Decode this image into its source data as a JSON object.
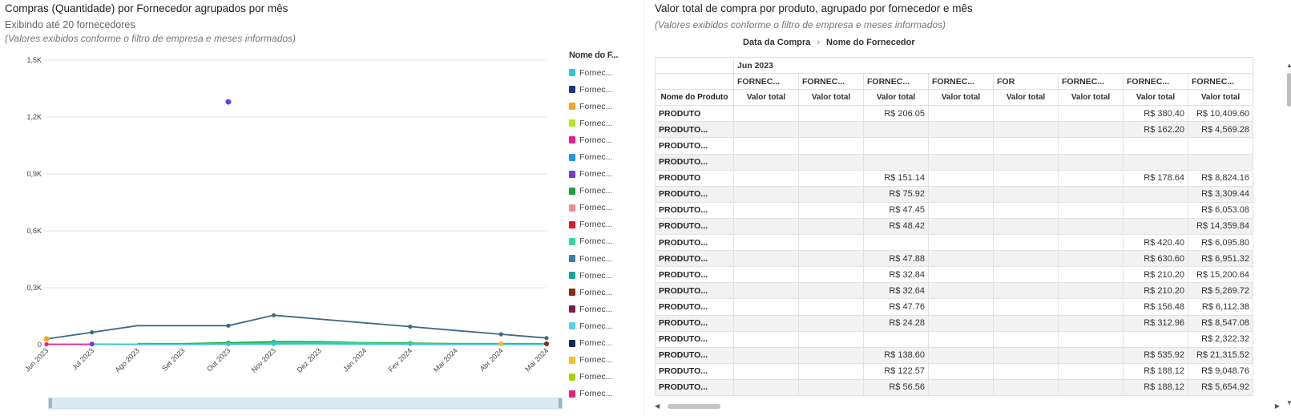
{
  "left": {
    "title": "Compras (Quantidade) por Fornecedor agrupados por mês",
    "subtitle": "Exibindo até 20 fornecedores",
    "note": "(Valores exibidos conforme o filtro de empresa e meses informados)",
    "legend_title": "Nome do F...",
    "legend": [
      {
        "label": "Fornec...",
        "color": "#29c9d6"
      },
      {
        "label": "Fornec...",
        "color": "#1f3b73"
      },
      {
        "label": "Fornec...",
        "color": "#f5a623"
      },
      {
        "label": "Fornec...",
        "color": "#b5e61d"
      },
      {
        "label": "Fornec...",
        "color": "#e91e8c"
      },
      {
        "label": "Fornec...",
        "color": "#2196f3"
      },
      {
        "label": "Fornec...",
        "color": "#6a3de8"
      },
      {
        "label": "Fornec...",
        "color": "#1e9e3e"
      },
      {
        "label": "Fornec...",
        "color": "#f08aa0"
      },
      {
        "label": "Fornec...",
        "color": "#e0142c"
      },
      {
        "label": "Fornec...",
        "color": "#34d9a0"
      },
      {
        "label": "Fornec...",
        "color": "#3e7fa8"
      },
      {
        "label": "Fornec...",
        "color": "#12a79d"
      },
      {
        "label": "Fornec...",
        "color": "#8a2b0e"
      },
      {
        "label": "Fornec...",
        "color": "#7a1f4a"
      },
      {
        "label": "Fornec...",
        "color": "#5ad0f0"
      },
      {
        "label": "Fornec...",
        "color": "#0d2a5c"
      },
      {
        "label": "Fornec...",
        "color": "#f7c21b"
      },
      {
        "label": "Fornec...",
        "color": "#a4d40f"
      },
      {
        "label": "Fornec...",
        "color": "#e8207a"
      }
    ]
  },
  "chart_data": {
    "type": "line",
    "categories": [
      "Jun 2023",
      "Jul 2023",
      "Ago 2023",
      "Set 2023",
      "Out 2023",
      "Nov 2023",
      "Dez 2023",
      "Jan 2024",
      "Fev 2024",
      "Mar 2024",
      "Abr 2024",
      "Mai 2024"
    ],
    "ylim": [
      0,
      1500
    ],
    "yticks": [
      0,
      300,
      600,
      900,
      1200,
      1500
    ],
    "ytick_labels": [
      "0",
      "0,3K",
      "0,6K",
      "0,9K",
      "1,2K",
      "1,5K"
    ],
    "series": [
      {
        "color": "#3e6a85",
        "values": [
          30,
          65,
          100,
          100,
          100,
          155,
          135,
          115,
          95,
          75,
          55,
          35
        ]
      },
      {
        "color": "#1e9e3e",
        "values": [
          null,
          null,
          5,
          5,
          10,
          15,
          15,
          10,
          8,
          5,
          5,
          5
        ]
      },
      {
        "color": "#34d9a0",
        "values": [
          null,
          null,
          3,
          2,
          5,
          8,
          10,
          8,
          5,
          3,
          3,
          3
        ]
      },
      {
        "color": "#29c9d6",
        "values": [
          null,
          3,
          2,
          2,
          3,
          4,
          5,
          4,
          3,
          2,
          2,
          2
        ]
      },
      {
        "color": "#e91e8c",
        "values": [
          2,
          2,
          null,
          null,
          null,
          null,
          null,
          null,
          null,
          null,
          null,
          null
        ]
      },
      {
        "color": "#6a3de8",
        "values": [
          null,
          null,
          null,
          null,
          1280,
          null,
          null,
          null,
          null,
          null,
          null,
          null
        ]
      }
    ],
    "grid": true,
    "legend_position": "right"
  },
  "right": {
    "title": "Valor total de compra por produto, agrupado por fornecedor e mês",
    "note": "(Valores exibidos conforme o filtro de empresa e meses informados)",
    "breadcrumb": [
      "Data da Compra",
      "Nome do Fornecedor"
    ],
    "top_header": "Jun 2023",
    "col_groups": [
      "FORNEC...",
      "FORNEC...",
      "FORNEC...",
      "FORNEC...",
      "FOR",
      "FORNEC...",
      "FORNEC...",
      "FORNEC..."
    ],
    "row_header_label": "Nome do Produto",
    "measure_label": "Valor total",
    "rows": [
      {
        "name": "PRODUTO",
        "v": [
          "",
          "",
          "R$ 206.05",
          "",
          "",
          "",
          "R$ 380.40",
          "R$ 10,409.60"
        ]
      },
      {
        "name": "PRODUTO...",
        "v": [
          "",
          "",
          "",
          "",
          "",
          "",
          "R$ 162.20",
          "R$ 4,569.28"
        ]
      },
      {
        "name": "PRODUTO...",
        "v": [
          "",
          "",
          "",
          "",
          "",
          "",
          "",
          ""
        ]
      },
      {
        "name": "PRODUTO...",
        "v": [
          "",
          "",
          "",
          "",
          "",
          "",
          "",
          ""
        ]
      },
      {
        "name": "PRODUTO",
        "v": [
          "",
          "",
          "R$ 151.14",
          "",
          "",
          "",
          "R$ 178.64",
          "R$ 8,824.16"
        ]
      },
      {
        "name": "PRODUTO...",
        "v": [
          "",
          "",
          "R$ 75.92",
          "",
          "",
          "",
          "",
          "R$ 3,309.44"
        ]
      },
      {
        "name": "PRODUTO...",
        "v": [
          "",
          "",
          "R$ 47.45",
          "",
          "",
          "",
          "",
          "R$ 6,053.08"
        ]
      },
      {
        "name": "PRODUTO...",
        "v": [
          "",
          "",
          "R$ 48.42",
          "",
          "",
          "",
          "",
          "R$ 14,359.84"
        ]
      },
      {
        "name": "PRODUTO...",
        "v": [
          "",
          "",
          "",
          "",
          "",
          "",
          "R$ 420.40",
          "R$ 6,095.80"
        ]
      },
      {
        "name": "PRODUTO...",
        "v": [
          "",
          "",
          "R$ 47.88",
          "",
          "",
          "",
          "R$ 630.60",
          "R$ 6,951.32"
        ]
      },
      {
        "name": "PRODUTO...",
        "v": [
          "",
          "",
          "R$ 32.84",
          "",
          "",
          "",
          "R$ 210.20",
          "R$ 15,200.64"
        ]
      },
      {
        "name": "PRODUTO...",
        "v": [
          "",
          "",
          "R$ 32.64",
          "",
          "",
          "",
          "R$ 210.20",
          "R$ 5,269.72"
        ]
      },
      {
        "name": "PRODUTO...",
        "v": [
          "",
          "",
          "R$ 47.76",
          "",
          "",
          "",
          "R$ 156.48",
          "R$ 6,112.38"
        ]
      },
      {
        "name": "PRODUTO...",
        "v": [
          "",
          "",
          "R$ 24.28",
          "",
          "",
          "",
          "R$ 312.96",
          "R$ 8,547.08"
        ]
      },
      {
        "name": "PRODUTO...",
        "v": [
          "",
          "",
          "",
          "",
          "",
          "",
          "",
          "R$ 2,322.32"
        ]
      },
      {
        "name": "PRODUTO...",
        "v": [
          "",
          "",
          "R$ 138.60",
          "",
          "",
          "",
          "R$ 535.92",
          "R$ 21,315.52"
        ]
      },
      {
        "name": "PRODUTO...",
        "v": [
          "",
          "",
          "R$ 122.57",
          "",
          "",
          "",
          "R$ 188.12",
          "R$ 9,048.76"
        ]
      },
      {
        "name": "PRODUTO...",
        "v": [
          "",
          "",
          "R$ 56.56",
          "",
          "",
          "",
          "R$ 188.12",
          "R$ 5,654.92"
        ]
      }
    ]
  }
}
